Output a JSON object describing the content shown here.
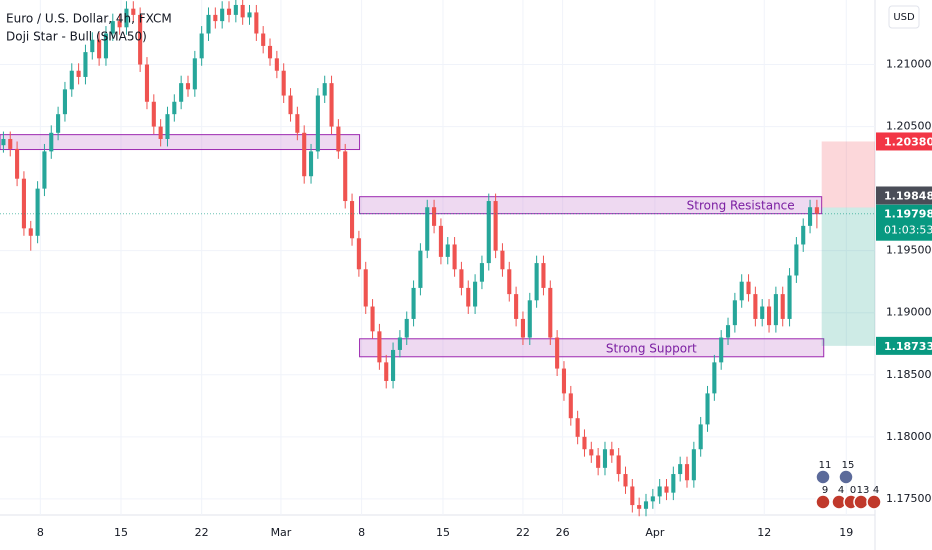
{
  "chart_data": {
    "type": "candlestick",
    "title": "Euro / U.S. Dollar, 4h, FXCM",
    "subtitle": "Doji Star - Bull (SMA50)",
    "currency": "USD",
    "up_color": "#26a69a",
    "down_color": "#ef5350",
    "grid": true,
    "xlim": [
      -0.5,
      127.5
    ],
    "ylim": [
      1.1737,
      1.2152
    ],
    "yticks": [
      {
        "value": 1.175,
        "label": "1.17500"
      },
      {
        "value": 1.18,
        "label": "1.18000"
      },
      {
        "value": 1.185,
        "label": "1.18500"
      },
      {
        "value": 1.19,
        "label": "1.19000"
      },
      {
        "value": 1.195,
        "label": "1.19500"
      },
      {
        "value": 1.205,
        "label": "1.20500"
      },
      {
        "value": 1.21,
        "label": "1.21000"
      }
    ],
    "xticks": [
      {
        "value": 5.4,
        "label": "8"
      },
      {
        "value": 17.2,
        "label": "15"
      },
      {
        "value": 29.0,
        "label": "22"
      },
      {
        "value": 40.6,
        "label": "Mar"
      },
      {
        "value": 52.4,
        "label": "8"
      },
      {
        "value": 64.3,
        "label": "15"
      },
      {
        "value": 76.0,
        "label": "22"
      },
      {
        "value": 81.8,
        "label": "26"
      },
      {
        "value": 95.3,
        "label": "Apr"
      },
      {
        "value": 111.3,
        "label": "12"
      },
      {
        "value": 123.3,
        "label": "19"
      }
    ],
    "candles": [
      [
        1.2035,
        1.2046,
        1.2029,
        1.204
      ],
      [
        1.204,
        1.2046,
        1.2026,
        1.2032
      ],
      [
        1.2032,
        1.2038,
        1.2002,
        1.2008
      ],
      [
        1.2008,
        1.2014,
        1.1962,
        1.1968
      ],
      [
        1.1968,
        1.1974,
        1.195,
        1.1962
      ],
      [
        1.1962,
        1.2006,
        1.1956,
        1.2
      ],
      [
        1.2,
        1.2036,
        1.1994,
        1.203
      ],
      [
        1.203,
        1.2051,
        1.2024,
        1.2045
      ],
      [
        1.2045,
        1.2066,
        1.2039,
        1.206
      ],
      [
        1.206,
        1.2086,
        1.2054,
        1.208
      ],
      [
        1.208,
        1.2101,
        1.2074,
        1.2095
      ],
      [
        1.2095,
        1.2101,
        1.2084,
        1.209
      ],
      [
        1.209,
        1.2116,
        1.2084,
        1.211
      ],
      [
        1.211,
        1.2126,
        1.2104,
        1.212
      ],
      [
        1.212,
        1.2126,
        1.2099,
        1.2105
      ],
      [
        1.2105,
        1.2131,
        1.2099,
        1.2125
      ],
      [
        1.2125,
        1.2141,
        1.2119,
        1.2135
      ],
      [
        1.2135,
        1.2141,
        1.2124,
        1.213
      ],
      [
        1.213,
        1.2151,
        1.2124,
        1.2145
      ],
      [
        1.2145,
        1.2151,
        1.2134,
        1.214
      ],
      [
        1.214,
        1.2146,
        1.2094,
        1.21
      ],
      [
        1.21,
        1.2106,
        1.2064,
        1.207
      ],
      [
        1.207,
        1.2076,
        1.2044,
        1.205
      ],
      [
        1.205,
        1.2056,
        1.2034,
        1.204
      ],
      [
        1.204,
        1.2066,
        1.2034,
        1.206
      ],
      [
        1.206,
        1.2076,
        1.2054,
        1.207
      ],
      [
        1.207,
        1.2091,
        1.2064,
        1.2085
      ],
      [
        1.2085,
        1.2091,
        1.2074,
        1.208
      ],
      [
        1.208,
        1.2111,
        1.2074,
        1.2105
      ],
      [
        1.2105,
        1.2131,
        1.2099,
        1.2125
      ],
      [
        1.2125,
        1.2146,
        1.2119,
        1.214
      ],
      [
        1.214,
        1.2146,
        1.2129,
        1.2135
      ],
      [
        1.2135,
        1.2151,
        1.2129,
        1.2145
      ],
      [
        1.2145,
        1.2151,
        1.2134,
        1.214
      ],
      [
        1.214,
        1.2154,
        1.2134,
        1.2148
      ],
      [
        1.2148,
        1.2154,
        1.2132,
        1.2138
      ],
      [
        1.2138,
        1.2148,
        1.2132,
        1.2142
      ],
      [
        1.2142,
        1.2148,
        1.2119,
        1.2125
      ],
      [
        1.2125,
        1.2131,
        1.2109,
        1.2115
      ],
      [
        1.2115,
        1.2121,
        1.2099,
        1.2105
      ],
      [
        1.2105,
        1.2111,
        1.2089,
        1.2095
      ],
      [
        1.2095,
        1.2101,
        1.2069,
        1.2075
      ],
      [
        1.2075,
        1.2081,
        1.2054,
        1.206
      ],
      [
        1.206,
        1.2066,
        1.2039,
        1.2045
      ],
      [
        1.2045,
        1.2051,
        1.2004,
        1.201
      ],
      [
        1.201,
        1.2036,
        1.2004,
        1.203
      ],
      [
        1.203,
        1.2081,
        1.2024,
        1.2075
      ],
      [
        1.2075,
        1.2091,
        1.2069,
        1.2085
      ],
      [
        1.2085,
        1.2091,
        1.2044,
        1.205
      ],
      [
        1.205,
        1.2056,
        1.2024,
        1.203
      ],
      [
        1.203,
        1.2036,
        1.1984,
        1.199
      ],
      [
        1.199,
        1.1996,
        1.1954,
        1.196
      ],
      [
        1.196,
        1.1966,
        1.1929,
        1.1935
      ],
      [
        1.1935,
        1.1941,
        1.1899,
        1.1905
      ],
      [
        1.1905,
        1.1911,
        1.1879,
        1.1885
      ],
      [
        1.1885,
        1.1891,
        1.1854,
        1.186
      ],
      [
        1.186,
        1.1866,
        1.1839,
        1.1845
      ],
      [
        1.1845,
        1.1876,
        1.1839,
        1.187
      ],
      [
        1.187,
        1.1886,
        1.1864,
        1.188
      ],
      [
        1.188,
        1.1901,
        1.1874,
        1.1895
      ],
      [
        1.1895,
        1.1926,
        1.1889,
        1.192
      ],
      [
        1.192,
        1.1956,
        1.1914,
        1.195
      ],
      [
        1.195,
        1.1991,
        1.1944,
        1.1985
      ],
      [
        1.1985,
        1.1991,
        1.1964,
        1.197
      ],
      [
        1.197,
        1.1976,
        1.1939,
        1.1945
      ],
      [
        1.1945,
        1.1961,
        1.1939,
        1.1955
      ],
      [
        1.1955,
        1.1961,
        1.1929,
        1.1935
      ],
      [
        1.1935,
        1.1941,
        1.1914,
        1.192
      ],
      [
        1.192,
        1.1926,
        1.1899,
        1.1905
      ],
      [
        1.1905,
        1.1931,
        1.1899,
        1.1925
      ],
      [
        1.1925,
        1.1946,
        1.1919,
        1.194
      ],
      [
        1.194,
        1.1996,
        1.1934,
        1.199
      ],
      [
        1.199,
        1.1996,
        1.1944,
        1.195
      ],
      [
        1.195,
        1.1956,
        1.1929,
        1.1935
      ],
      [
        1.1935,
        1.1941,
        1.1909,
        1.1915
      ],
      [
        1.1915,
        1.1921,
        1.1889,
        1.1895
      ],
      [
        1.1895,
        1.1901,
        1.1874,
        1.188
      ],
      [
        1.188,
        1.1916,
        1.1874,
        1.191
      ],
      [
        1.191,
        1.1946,
        1.1904,
        1.194
      ],
      [
        1.194,
        1.1946,
        1.1914,
        1.192
      ],
      [
        1.192,
        1.1926,
        1.1874,
        1.188
      ],
      [
        1.188,
        1.1886,
        1.1849,
        1.1855
      ],
      [
        1.1855,
        1.1861,
        1.1829,
        1.1835
      ],
      [
        1.1835,
        1.1841,
        1.1809,
        1.1815
      ],
      [
        1.1815,
        1.1821,
        1.1794,
        1.18
      ],
      [
        1.18,
        1.1806,
        1.1784,
        1.179
      ],
      [
        1.179,
        1.1796,
        1.1779,
        1.1785
      ],
      [
        1.1785,
        1.1791,
        1.1769,
        1.1775
      ],
      [
        1.1775,
        1.1796,
        1.1769,
        1.179
      ],
      [
        1.179,
        1.1796,
        1.1779,
        1.1785
      ],
      [
        1.1785,
        1.1791,
        1.1764,
        1.177
      ],
      [
        1.177,
        1.1776,
        1.1754,
        1.176
      ],
      [
        1.176,
        1.1766,
        1.1739,
        1.1745
      ],
      [
        1.1745,
        1.1751,
        1.1736,
        1.1742
      ],
      [
        1.1742,
        1.1754,
        1.1736,
        1.1748
      ],
      [
        1.1748,
        1.1758,
        1.1742,
        1.1752
      ],
      [
        1.1752,
        1.1766,
        1.1746,
        1.176
      ],
      [
        1.176,
        1.1766,
        1.1749,
        1.1755
      ],
      [
        1.1755,
        1.1776,
        1.1749,
        1.177
      ],
      [
        1.177,
        1.1784,
        1.1764,
        1.1778
      ],
      [
        1.1778,
        1.1784,
        1.1759,
        1.1765
      ],
      [
        1.1765,
        1.1796,
        1.1759,
        1.179
      ],
      [
        1.179,
        1.1816,
        1.1784,
        1.181
      ],
      [
        1.181,
        1.1841,
        1.1804,
        1.1835
      ],
      [
        1.1835,
        1.1866,
        1.1829,
        1.186
      ],
      [
        1.186,
        1.1886,
        1.1854,
        1.188
      ],
      [
        1.188,
        1.1896,
        1.1874,
        1.189
      ],
      [
        1.189,
        1.1916,
        1.1884,
        1.191
      ],
      [
        1.191,
        1.1931,
        1.1904,
        1.1925
      ],
      [
        1.1925,
        1.1931,
        1.1909,
        1.1915
      ],
      [
        1.1915,
        1.1921,
        1.1889,
        1.1895
      ],
      [
        1.1895,
        1.1911,
        1.1889,
        1.1905
      ],
      [
        1.1905,
        1.1911,
        1.1884,
        1.189
      ],
      [
        1.189,
        1.1921,
        1.1884,
        1.1915
      ],
      [
        1.1915,
        1.1921,
        1.1889,
        1.1895
      ],
      [
        1.1895,
        1.1936,
        1.1889,
        1.193
      ],
      [
        1.193,
        1.1961,
        1.1924,
        1.1955
      ],
      [
        1.1955,
        1.1976,
        1.1949,
        1.197
      ],
      [
        1.197,
        1.1991,
        1.1964,
        1.1985
      ],
      [
        1.1985,
        1.1991,
        1.1968,
        1.19798
      ]
    ],
    "zones": [
      {
        "x": [
          -0.5,
          52.1
        ],
        "y": [
          1.20315,
          1.20435
        ]
      },
      {
        "label": "Strong Resistance",
        "x": [
          52.1,
          119.7
        ],
        "y": [
          1.19798,
          1.19935
        ]
      },
      {
        "label": "Strong Support",
        "x": [
          52.1,
          120.0
        ],
        "y": [
          1.18645,
          1.1879
        ]
      }
    ],
    "position": {
      "x": [
        119.7,
        127.5
      ],
      "stop": 1.2038,
      "entry": 1.19848,
      "target": 1.18733
    },
    "price_labels": [
      {
        "value": 1.2038,
        "label": "1.20380",
        "color": "#f23645"
      },
      {
        "value": 1.19848,
        "label": "1.19848",
        "color": "#4a4d57"
      },
      {
        "value": 1.19798,
        "label": "1.19798",
        "color": "#089981"
      },
      {
        "value": 1.18733,
        "label": "1.18733",
        "color": "#089981"
      }
    ],
    "countdown": "01:03:53",
    "events": [
      "11",
      "15",
      "9",
      "4",
      "0",
      "13",
      "4"
    ]
  }
}
